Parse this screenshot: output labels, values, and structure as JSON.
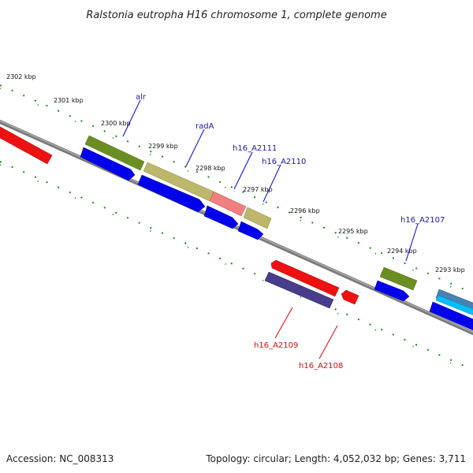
{
  "title": "Ralstonia eutropha H16 chromosome 1, complete genome",
  "ticks": [
    "2302 kbp",
    "2301 kbp",
    "2300 kbp",
    "2299 kbp",
    "2298 kbp",
    "2297 kbp",
    "2296 kbp",
    "2295 kbp",
    "2294 kbp",
    "2293 kbp"
  ],
  "gene_labels": [
    {
      "text": "alr",
      "strand": "forward"
    },
    {
      "text": "radA",
      "strand": "forward"
    },
    {
      "text": "h16_A2111",
      "strand": "forward"
    },
    {
      "text": "h16_A2110",
      "strand": "forward"
    },
    {
      "text": "h16_A2107",
      "strand": "forward"
    },
    {
      "text": "h16_A2109",
      "strand": "reverse"
    },
    {
      "text": "h16_A2108",
      "strand": "reverse"
    }
  ],
  "footer": {
    "accession": "Accession: NC_008313",
    "stats": "Topology: circular; Length: 4,052,032 bp; Genes: 3,711"
  },
  "colors": {
    "backbone": "#7a7a7a",
    "tick_marks": "#1e8a1e",
    "cds_forward": "#0000ee",
    "cds_reverse": "#ee0000",
    "gene_olive": "#6b8e23",
    "gene_khaki": "#bdb76b",
    "gene_salmon": "#f08080",
    "gene_slate": "#483d8b",
    "gene_cyan": "#00bfff"
  }
}
